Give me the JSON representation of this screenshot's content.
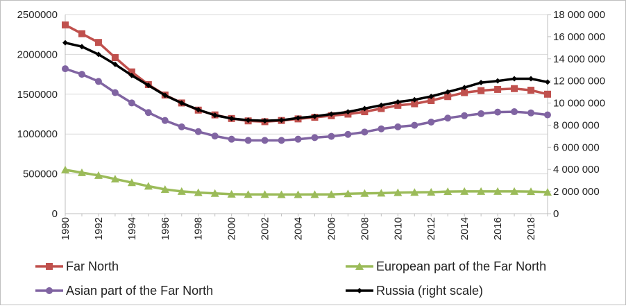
{
  "chart_data": {
    "type": "line",
    "title": "",
    "xlabel": "",
    "ylabel": "",
    "x": [
      1990,
      1991,
      1992,
      1993,
      1994,
      1995,
      1996,
      1997,
      1998,
      1999,
      2000,
      2001,
      2002,
      2003,
      2004,
      2005,
      2006,
      2007,
      2008,
      2009,
      2010,
      2011,
      2012,
      2013,
      2014,
      2015,
      2016,
      2017,
      2018,
      2019
    ],
    "x_tick_labels": [
      "1990",
      "1992",
      "1994",
      "1996",
      "1998",
      "2000",
      "2002",
      "2004",
      "2006",
      "2008",
      "2010",
      "2012",
      "2014",
      "2016",
      "2018"
    ],
    "ylim_left": [
      0,
      2500000
    ],
    "ylim_right": [
      0,
      18000000
    ],
    "y_left_tick_labels": [
      "0",
      "500000",
      "1000000",
      "1500000",
      "2000000",
      "2500000"
    ],
    "y_right_tick_labels": [
      "0",
      "2 000 000",
      "4 000 000",
      "6 000 000",
      "8 000 000",
      "10 000 000",
      "12 000 000",
      "14 000 000",
      "16 000 000",
      "18 000 000"
    ],
    "grid": true,
    "legend_position": "bottom",
    "series": [
      {
        "name": "Far North",
        "axis": "left",
        "color": "#c0504d",
        "marker": "square",
        "values": [
          2370000,
          2260000,
          2150000,
          1960000,
          1780000,
          1620000,
          1490000,
          1390000,
          1300000,
          1240000,
          1195000,
          1165000,
          1155000,
          1170000,
          1190000,
          1210000,
          1230000,
          1250000,
          1280000,
          1320000,
          1360000,
          1380000,
          1420000,
          1470000,
          1520000,
          1545000,
          1560000,
          1570000,
          1550000,
          1500000
        ]
      },
      {
        "name": "European part of the Far North",
        "axis": "left",
        "color": "#9bbb59",
        "marker": "triangle",
        "values": [
          550000,
          515000,
          480000,
          435000,
          390000,
          345000,
          305000,
          280000,
          265000,
          255000,
          245000,
          242000,
          242000,
          240000,
          240000,
          241000,
          242000,
          250000,
          255000,
          258000,
          265000,
          268000,
          270000,
          278000,
          280000,
          280000,
          280000,
          280000,
          278000,
          270000
        ]
      },
      {
        "name": "Asian part of the Far North",
        "axis": "left",
        "color": "#8064a2",
        "marker": "circle",
        "values": [
          1820000,
          1750000,
          1660000,
          1520000,
          1390000,
          1270000,
          1170000,
          1090000,
          1030000,
          975000,
          935000,
          920000,
          920000,
          920000,
          935000,
          955000,
          970000,
          995000,
          1025000,
          1065000,
          1090000,
          1110000,
          1150000,
          1200000,
          1230000,
          1255000,
          1275000,
          1280000,
          1265000,
          1240000
        ]
      },
      {
        "name": "Russia (right scale)",
        "axis": "right",
        "color": "#000000",
        "marker": "diamond",
        "values": [
          15450000,
          15100000,
          14400000,
          13500000,
          12500000,
          11600000,
          10700000,
          10000000,
          9400000,
          8900000,
          8600000,
          8450000,
          8400000,
          8450000,
          8650000,
          8800000,
          9000000,
          9200000,
          9500000,
          9800000,
          10100000,
          10300000,
          10600000,
          11000000,
          11400000,
          11850000,
          12000000,
          12200000,
          12200000,
          11900000
        ]
      }
    ]
  }
}
